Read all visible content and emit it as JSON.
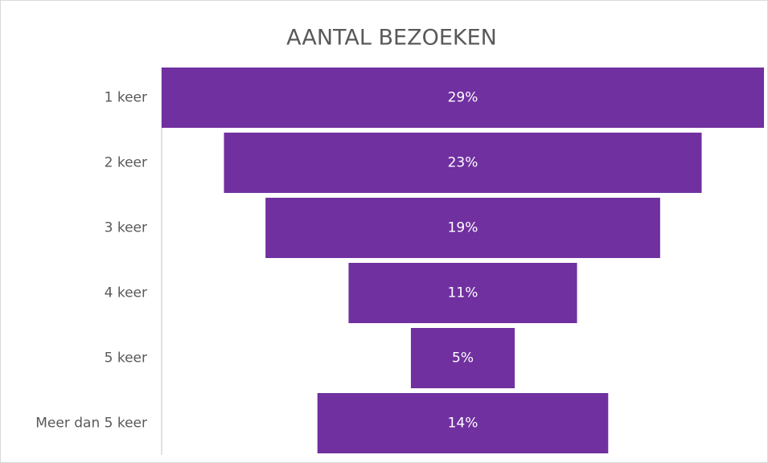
{
  "chart_data": {
    "type": "funnel",
    "title": "AANTAL BEZOEKEN",
    "categories": [
      "1 keer",
      "2 keer",
      "3 keer",
      "4 keer",
      "5 keer",
      "Meer dan 5 keer"
    ],
    "values": [
      29,
      23,
      19,
      11,
      5,
      14
    ],
    "value_labels": [
      "29%",
      "23%",
      "19%",
      "11%",
      "5%",
      "14%"
    ],
    "color": "#7030a0"
  }
}
